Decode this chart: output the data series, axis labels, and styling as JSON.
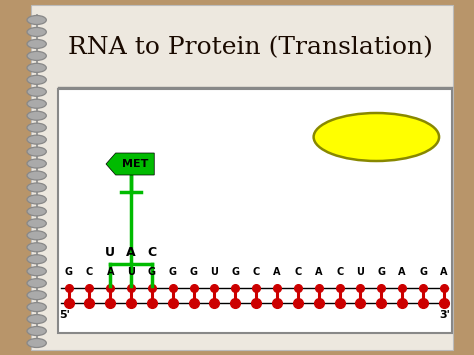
{
  "title": "RNA to Protein (Translation)",
  "title_fontsize": 18,
  "bg_outer": "#b8956a",
  "bg_inner": "#ede8df",
  "bg_content": "#ffffff",
  "rna_sequence": [
    "G",
    "C",
    "A",
    "U",
    "G",
    "G",
    "G",
    "U",
    "G",
    "C",
    "A",
    "C",
    "A",
    "C",
    "U",
    "G",
    "A",
    "G",
    "A"
  ],
  "anticodon": [
    "U",
    "A",
    "C"
  ],
  "met_label": "MET",
  "trna_color": "#00bb00",
  "ribosome_color": "#ffff00",
  "ribosome_outline": "#888800",
  "strand_color": "#cc0000",
  "dot_color": "#cc0000",
  "label_5prime": "5'",
  "label_3prime": "3'",
  "strand_line_color": "#000000",
  "spiral_color": "#888888",
  "spiral_fill": "#aaaaaa",
  "content_border": "#888888",
  "title_color": "#1a0a00"
}
